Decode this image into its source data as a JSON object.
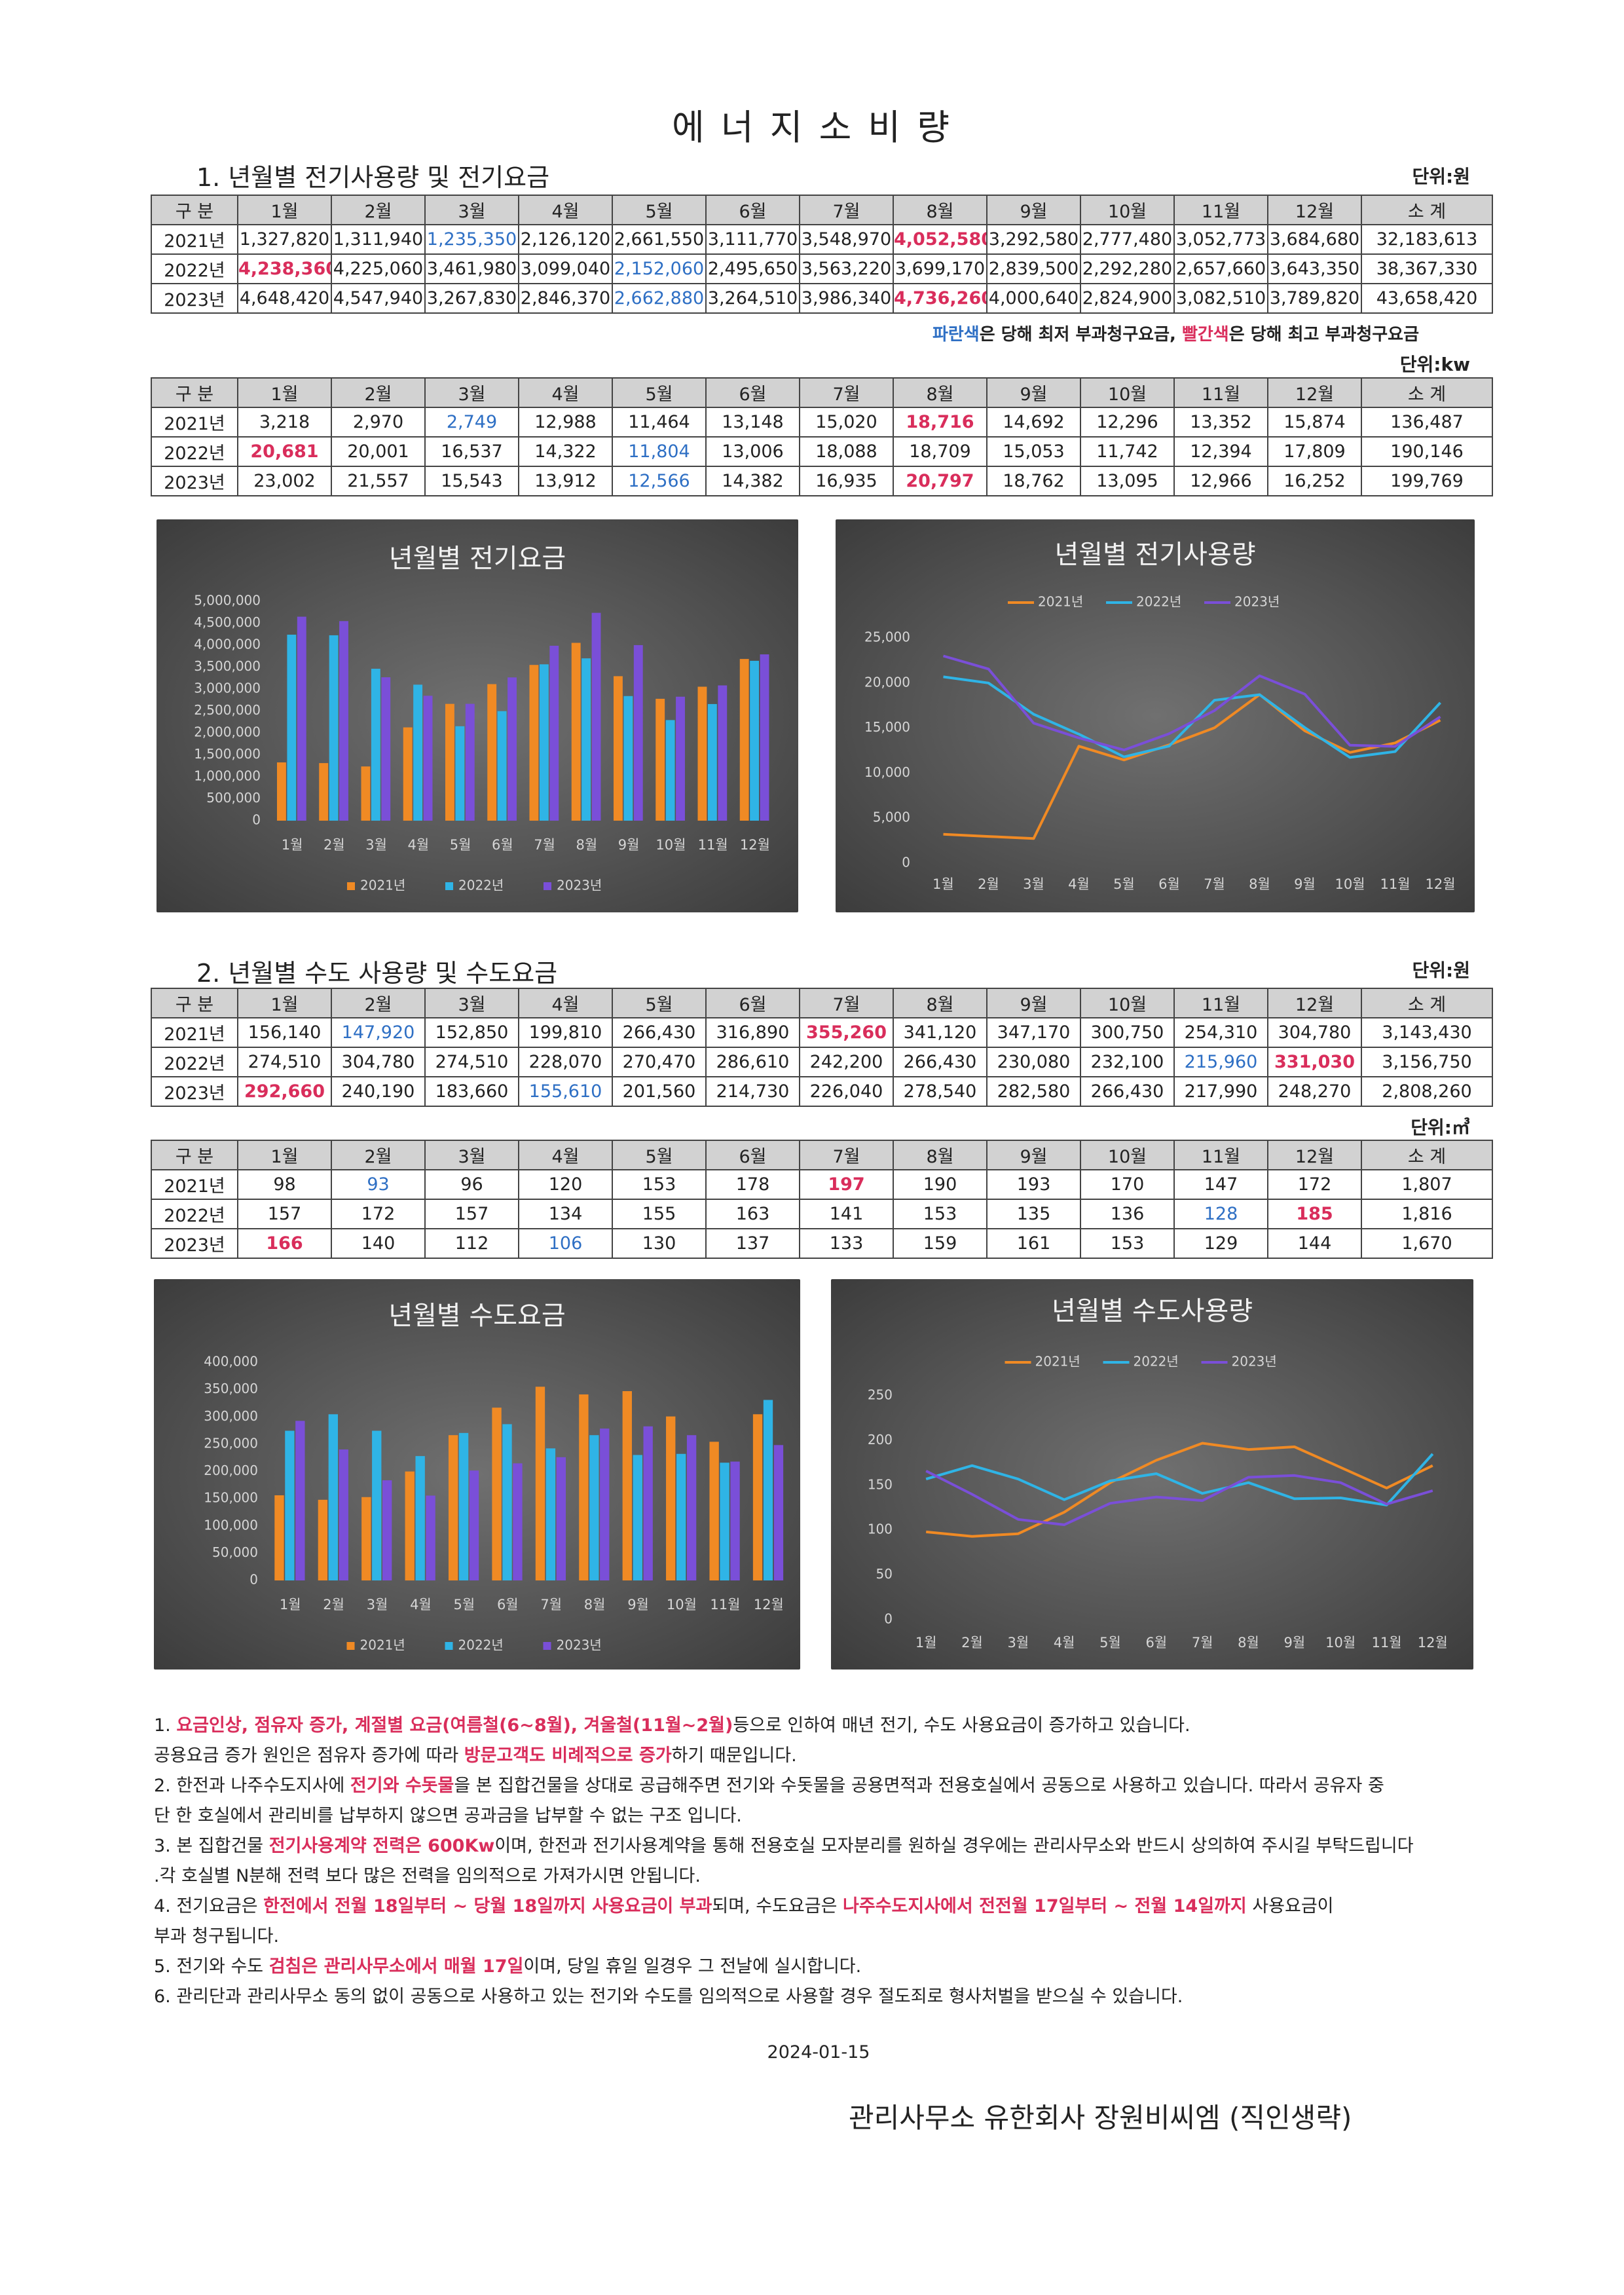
{
  "title": "에 너 지 소 비 량",
  "sections": [
    {
      "heading": "1. 년월별 전기사용량 및 전기요금",
      "tables": [
        {
          "unit": "단위:원",
          "header": [
            "구 분",
            "1월",
            "2월",
            "3월",
            "4월",
            "5월",
            "6월",
            "7월",
            "8월",
            "9월",
            "10월",
            "11월",
            "12월",
            "소 계"
          ],
          "rows": [
            [
              "2021년",
              "1,327,820",
              "1,311,940",
              {
                "text": "1,235,350",
                "color": "#2e6fc4"
              },
              "2,126,120",
              "2,661,550",
              "3,111,770",
              "3,548,970",
              {
                "text": "4,052,580",
                "color": "#d92d5b",
                "bold": true
              },
              "3,292,580",
              "2,777,480",
              "3,052,773",
              "3,684,680",
              "32,183,613"
            ],
            [
              "2022년",
              {
                "text": "4,238,360",
                "color": "#d92d5b",
                "bold": true
              },
              "4,225,060",
              "3,461,980",
              "3,099,040",
              {
                "text": "2,152,060",
                "color": "#2e6fc4"
              },
              "2,495,650",
              "3,563,220",
              "3,699,170",
              "2,839,500",
              "2,292,280",
              "2,657,660",
              "3,643,350",
              "38,367,330"
            ],
            [
              "2023년",
              "4,648,420",
              "4,547,940",
              "3,267,830",
              "2,846,370",
              {
                "text": "2,662,880",
                "color": "#2e6fc4"
              },
              "3,264,510",
              "3,986,340",
              {
                "text": "4,736,260",
                "color": "#d92d5b",
                "bold": true
              },
              "4,000,640",
              "2,824,900",
              "3,082,510",
              "3,789,820",
              "43,658,420"
            ]
          ],
          "note": [
            {
              "text": "파란색",
              "color": "#2e6fc4"
            },
            "은 당해 최저 부과청구요금, ",
            {
              "text": "빨간색",
              "color": "#d92d5b"
            },
            "은 당해 최고 부과청구요금"
          ]
        },
        {
          "unit": "단위:kw",
          "header": [
            "구 분",
            "1월",
            "2월",
            "3월",
            "4월",
            "5월",
            "6월",
            "7월",
            "8월",
            "9월",
            "10월",
            "11월",
            "12월",
            "소 계"
          ],
          "rows": [
            [
              "2021년",
              "3,218",
              "2,970",
              {
                "text": "2,749",
                "color": "#2e6fc4"
              },
              "12,988",
              "11,464",
              "13,148",
              "15,020",
              {
                "text": "18,716",
                "color": "#d92d5b",
                "bold": true
              },
              "14,692",
              "12,296",
              "13,352",
              "15,874",
              "136,487"
            ],
            [
              "2022년",
              {
                "text": "20,681",
                "color": "#d92d5b",
                "bold": true
              },
              "20,001",
              "16,537",
              "14,322",
              {
                "text": "11,804",
                "color": "#2e6fc4"
              },
              "13,006",
              "18,088",
              "18,709",
              "15,053",
              "11,742",
              "12,394",
              "17,809",
              "190,146"
            ],
            [
              "2023년",
              "23,002",
              "21,557",
              "15,543",
              "13,912",
              {
                "text": "12,566",
                "color": "#2e6fc4"
              },
              "14,382",
              "16,935",
              {
                "text": "20,797",
                "color": "#d92d5b",
                "bold": true
              },
              "18,762",
              "13,095",
              "12,966",
              "16,252",
              "199,769"
            ]
          ]
        }
      ]
    },
    {
      "heading": "2. 년월별 수도 사용량 및 수도요금",
      "tables": [
        {
          "unit": "단위:원",
          "header": [
            "구 분",
            "1월",
            "2월",
            "3월",
            "4월",
            "5월",
            "6월",
            "7월",
            "8월",
            "9월",
            "10월",
            "11월",
            "12월",
            "소 계"
          ],
          "rows": [
            [
              "2021년",
              "156,140",
              {
                "text": "147,920",
                "color": "#2e6fc4"
              },
              "152,850",
              "199,810",
              "266,430",
              "316,890",
              {
                "text": "355,260",
                "color": "#d92d5b",
                "bold": true
              },
              "341,120",
              "347,170",
              "300,750",
              "254,310",
              "304,780",
              "3,143,430"
            ],
            [
              "2022년",
              "274,510",
              "304,780",
              "274,510",
              "228,070",
              "270,470",
              "286,610",
              "242,200",
              "266,430",
              "230,080",
              "232,100",
              {
                "text": "215,960",
                "color": "#2e6fc4"
              },
              {
                "text": "331,030",
                "color": "#d92d5b",
                "bold": true
              },
              "3,156,750"
            ],
            [
              "2023년",
              {
                "text": "292,660",
                "color": "#d92d5b",
                "bold": true
              },
              "240,190",
              "183,660",
              {
                "text": "155,610",
                "color": "#2e6fc4"
              },
              "201,560",
              "214,730",
              "226,040",
              "278,540",
              "282,580",
              "266,430",
              "217,990",
              "248,270",
              "2,808,260"
            ]
          ]
        },
        {
          "unit": "단위:㎥",
          "header": [
            "구 분",
            "1월",
            "2월",
            "3월",
            "4월",
            "5월",
            "6월",
            "7월",
            "8월",
            "9월",
            "10월",
            "11월",
            "12월",
            "소 계"
          ],
          "rows": [
            [
              "2021년",
              "98",
              {
                "text": "93",
                "color": "#2e6fc4"
              },
              "96",
              "120",
              "153",
              "178",
              {
                "text": "197",
                "color": "#d92d5b",
                "bold": true
              },
              "190",
              "193",
              "170",
              "147",
              "172",
              "1,807"
            ],
            [
              "2022년",
              "157",
              "172",
              "157",
              "134",
              "155",
              "163",
              "141",
              "153",
              "135",
              "136",
              {
                "text": "128",
                "color": "#2e6fc4"
              },
              {
                "text": "185",
                "color": "#d92d5b",
                "bold": true
              },
              "1,816"
            ],
            [
              "2023년",
              {
                "text": "166",
                "color": "#d92d5b",
                "bold": true
              },
              "140",
              "112",
              {
                "text": "106",
                "color": "#2e6fc4"
              },
              "130",
              "137",
              "133",
              "159",
              "161",
              "153",
              "129",
              "144",
              "1,670"
            ]
          ]
        }
      ]
    }
  ],
  "chart_data": [
    {
      "type": "bar",
      "title": "년월별 전기요금",
      "legend": "bottom",
      "grid": false,
      "categories": [
        "1월",
        "2월",
        "3월",
        "4월",
        "5월",
        "6월",
        "7월",
        "8월",
        "9월",
        "10월",
        "11월",
        "12월"
      ],
      "series": [
        {
          "name": "2021년",
          "color": "#f08a24",
          "values": [
            1327820,
            1311940,
            1235350,
            2126120,
            2661550,
            3111770,
            3548970,
            4052580,
            3292580,
            2777480,
            3052773,
            3684680
          ]
        },
        {
          "name": "2022년",
          "color": "#2fb4e6",
          "values": [
            4238360,
            4225060,
            3461980,
            3099040,
            2152060,
            2495650,
            3563220,
            3699170,
            2839500,
            2292280,
            2657660,
            3643350
          ]
        },
        {
          "name": "2023년",
          "color": "#7a4fd8",
          "values": [
            4648420,
            4547940,
            3267830,
            2846370,
            2662880,
            3264510,
            3986340,
            4736260,
            4000640,
            2824900,
            3082510,
            3789820
          ]
        }
      ],
      "ylim": [
        0,
        5000000
      ],
      "yticks": [
        0,
        {
          "value": 500000,
          "label": "500,000"
        },
        {
          "value": 1000000,
          "label": "1,000,000"
        },
        {
          "value": 1500000,
          "label": "1,500,000"
        },
        {
          "value": 2000000,
          "label": "2,000,000"
        },
        {
          "value": 2500000,
          "label": "2,500,000"
        },
        {
          "value": 3000000,
          "label": "3,000,000"
        },
        {
          "value": 3500000,
          "label": "3,500,000"
        },
        {
          "value": 4000000,
          "label": "4,000,000"
        },
        {
          "value": 4500000,
          "label": "4,500,000"
        },
        {
          "value": 5000000,
          "label": "5,000,000"
        }
      ]
    },
    {
      "type": "line",
      "title": "년월별 전기사용량",
      "legend": "top",
      "grid": false,
      "categories": [
        "1월",
        "2월",
        "3월",
        "4월",
        "5월",
        "6월",
        "7월",
        "8월",
        "9월",
        "10월",
        "11월",
        "12월"
      ],
      "series": [
        {
          "name": "2021년",
          "color": "#f08a24",
          "values": [
            3218,
            2970,
            2749,
            12988,
            11464,
            13148,
            15020,
            18716,
            14692,
            12296,
            13352,
            15874
          ]
        },
        {
          "name": "2022년",
          "color": "#2fb4e6",
          "values": [
            20681,
            20001,
            16537,
            14322,
            11804,
            13006,
            18088,
            18709,
            15053,
            11742,
            12394,
            17809
          ]
        },
        {
          "name": "2023년",
          "color": "#7a4fd8",
          "values": [
            23002,
            21557,
            15543,
            13912,
            12566,
            14382,
            16935,
            20797,
            18762,
            13095,
            12966,
            16252
          ]
        }
      ],
      "ylim": [
        0,
        25000
      ],
      "yticks": [
        0,
        {
          "value": 5000,
          "label": "5,000"
        },
        {
          "value": 10000,
          "label": "10,000"
        },
        {
          "value": 15000,
          "label": "15,000"
        },
        {
          "value": 20000,
          "label": "20,000"
        },
        {
          "value": 25000,
          "label": "25,000"
        }
      ]
    },
    {
      "type": "bar",
      "title": "년월별 수도요금",
      "legend": "bottom",
      "grid": false,
      "categories": [
        "1월",
        "2월",
        "3월",
        "4월",
        "5월",
        "6월",
        "7월",
        "8월",
        "9월",
        "10월",
        "11월",
        "12월"
      ],
      "series": [
        {
          "name": "2021년",
          "color": "#f08a24",
          "values": [
            156140,
            147920,
            152850,
            199810,
            266430,
            316890,
            355260,
            341120,
            347170,
            300750,
            254310,
            304780
          ]
        },
        {
          "name": "2022년",
          "color": "#2fb4e6",
          "values": [
            274510,
            304780,
            274510,
            228070,
            270470,
            286610,
            242200,
            266430,
            230080,
            232100,
            215960,
            331030
          ]
        },
        {
          "name": "2023년",
          "color": "#7a4fd8",
          "values": [
            292660,
            240190,
            183660,
            155610,
            201560,
            214730,
            226040,
            278540,
            282580,
            266430,
            217990,
            248270
          ]
        }
      ],
      "ylim": [
        0,
        400000
      ],
      "yticks": [
        0,
        {
          "value": 50000,
          "label": "50,000"
        },
        {
          "value": 100000,
          "label": "100,000"
        },
        {
          "value": 150000,
          "label": "150,000"
        },
        {
          "value": 200000,
          "label": "200,000"
        },
        {
          "value": 250000,
          "label": "250,000"
        },
        {
          "value": 300000,
          "label": "300,000"
        },
        {
          "value": 350000,
          "label": "350,000"
        },
        {
          "value": 400000,
          "label": "400,000"
        }
      ]
    },
    {
      "type": "line",
      "title": "년월별 수도사용량",
      "legend": "top",
      "grid": false,
      "categories": [
        "1월",
        "2월",
        "3월",
        "4월",
        "5월",
        "6월",
        "7월",
        "8월",
        "9월",
        "10월",
        "11월",
        "12월"
      ],
      "series": [
        {
          "name": "2021년",
          "color": "#f08a24",
          "values": [
            98,
            93,
            96,
            120,
            153,
            178,
            197,
            190,
            193,
            170,
            147,
            172
          ]
        },
        {
          "name": "2022년",
          "color": "#2fb4e6",
          "values": [
            157,
            172,
            157,
            134,
            155,
            163,
            141,
            153,
            135,
            136,
            128,
            185
          ]
        },
        {
          "name": "2023년",
          "color": "#7a4fd8",
          "values": [
            166,
            140,
            112,
            106,
            130,
            137,
            133,
            159,
            161,
            153,
            129,
            144
          ]
        }
      ],
      "ylim": [
        0,
        250
      ],
      "yticks": [
        0,
        50,
        100,
        150,
        200,
        250
      ]
    }
  ],
  "notes": [
    [
      [
        "1. ",
        {
          "text": "요금인상, 점유자 증가,  계절별 요금(여름철(6~8월), 겨울철(11월~2월)",
          "color": "#d92d5b",
          "bold": true
        },
        "등으로 인하여 매년 전기, 수도 사용요금이  증가하고 있습니다."
      ],
      [
        " 공용요금 증가 원인은 점유자 증가에 따라 ",
        {
          "text": "방문고객도 비례적으로 증가",
          "color": "#d92d5b",
          "bold": true
        },
        "하기 때문입니다."
      ]
    ],
    [
      [
        "2. 한전과 나주수도지사에 ",
        {
          "text": "전기와 수돗물",
          "color": "#d92d5b",
          "bold": true
        },
        "을 본 집합건물을 상대로 공급해주면 전기와 수돗물을 공용면적과 전용호실에서 공동으로 사용하고 있습니다. 따라서 공유자 중"
      ],
      [
        " 단 한 호실에서 관리비를 납부하지 않으면 공과금을 납부할 수 없는 구조 입니다."
      ]
    ],
    [
      [
        "3. 본 집합건물 ",
        {
          "text": "전기사용계약 전력은 600Kw",
          "color": "#d92d5b",
          "bold": true
        },
        "이며, 한전과 전기사용계약을 통해 전용호실 모자분리를 원하실 경우에는 관리사무소와 반드시 상의하여 주시길 부탁드립니다"
      ],
      [
        ".각 호실별 N분해 전력 보다 많은 전력을 임의적으로 가져가시면 안됩니다."
      ]
    ],
    [
      [
        "4. 전기요금은 ",
        {
          "text": "한전에서 전월 18일부터 ~ 당월 18일까지 사용요금이 부과",
          "color": "#d92d5b",
          "bold": true
        },
        "되며, 수도요금은 ",
        {
          "text": "나주수도지사에서  전전월 17일부터 ~ 전월 14일까지",
          "color": "#d92d5b",
          "bold": true
        },
        " 사용요금이"
      ],
      [
        "부과 청구됩니다."
      ]
    ],
    [
      [
        "5. 전기와 수도 ",
        {
          "text": "검침은 관리사무소에서 매월 17일",
          "color": "#d92d5b",
          "bold": true
        },
        "이며, 당일 휴일 일경우 그 전날에 실시합니다."
      ]
    ],
    [
      [
        "6. 관리단과 관리사무소 동의 없이 공동으로 사용하고 있는 전기와 수도를 임의적으로 사용할 경우 절도죄로 형사처벌을 받으실 수 있습니다."
      ]
    ]
  ],
  "date": "2024-01-15",
  "footer": "관리사무소 유한회사 장원비씨엠 (직인생략)"
}
